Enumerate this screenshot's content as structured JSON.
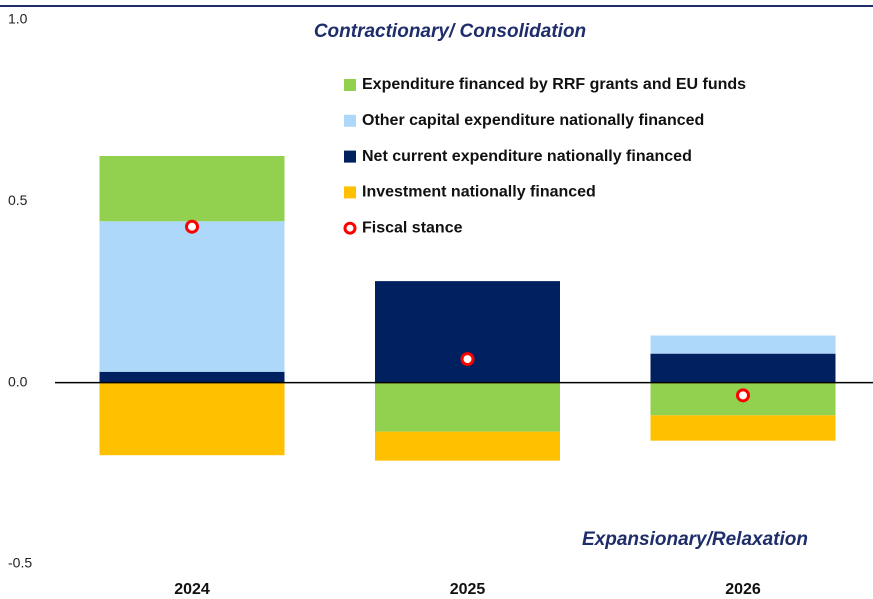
{
  "chart_data": {
    "type": "bar",
    "stacked": true,
    "annotations": [
      "Contractionary/ Consolidation",
      "Expansionary/Relaxation"
    ],
    "categories": [
      "2024",
      "2025",
      "2026"
    ],
    "series": [
      {
        "name": "Expenditure financed by RRF grants and EU funds",
        "color": "#92d050",
        "type": "bar",
        "values": [
          0.18,
          -0.135,
          -0.09
        ]
      },
      {
        "name": "Other capital expenditure nationally financed",
        "color": "#add8fa",
        "type": "bar",
        "values": [
          0.415,
          0,
          0.05
        ]
      },
      {
        "name": "Net current expenditure nationally financed",
        "color": "#002060",
        "type": "bar",
        "values": [
          0.03,
          0.28,
          0.08
        ]
      },
      {
        "name": "Investment nationally financed",
        "color": "#ffc000",
        "type": "bar",
        "values": [
          -0.2,
          -0.08,
          -0.07
        ]
      },
      {
        "name": "Fiscal stance",
        "color": "#ff0000",
        "type": "scatter",
        "values": [
          0.43,
          0.065,
          -0.035
        ]
      }
    ],
    "ylim": [
      -0.5,
      1.0
    ],
    "yticks": [
      -0.5,
      {
        "value": 0,
        "label": "0.0"
      },
      0.5,
      {
        "value": 1,
        "label": "1.0"
      }
    ],
    "grid": false
  }
}
